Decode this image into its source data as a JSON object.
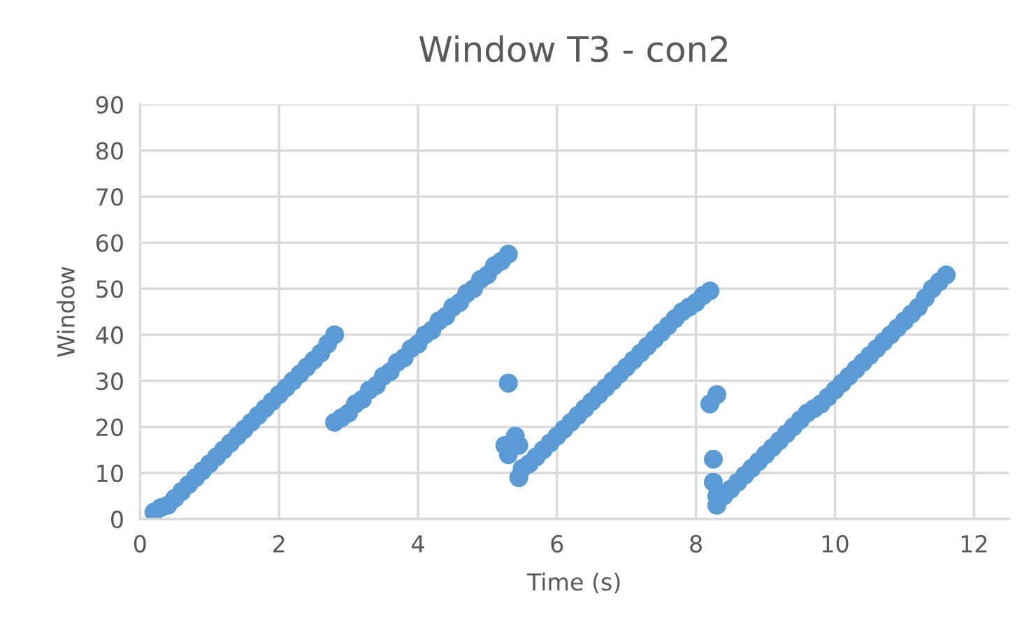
{
  "chart_data": {
    "type": "scatter",
    "title": "Window T3 - con2",
    "xlabel": "Time (s)",
    "ylabel": "Window",
    "series": [
      {
        "color": "#5b9bd5",
        "x": [
          0.2,
          0.3,
          0.4,
          0.5,
          0.6,
          0.7,
          0.8,
          0.9,
          1.0,
          1.1,
          1.2,
          1.3,
          1.4,
          1.5,
          1.6,
          1.7,
          1.8,
          1.9,
          2.0,
          2.1,
          2.2,
          2.3,
          2.4,
          2.5,
          2.6,
          2.7,
          2.8,
          2.8,
          2.9,
          3.0,
          3.1,
          3.2,
          3.3,
          3.4,
          3.5,
          3.6,
          3.7,
          3.8,
          3.9,
          4.0,
          4.1,
          4.2,
          4.3,
          4.4,
          4.5,
          4.6,
          4.7,
          4.8,
          4.9,
          5.0,
          5.1,
          5.2,
          5.3,
          5.3,
          5.25,
          5.3,
          5.4,
          5.45,
          5.45,
          5.5,
          5.6,
          5.7,
          5.8,
          5.9,
          6.0,
          6.1,
          6.2,
          6.3,
          6.4,
          6.5,
          6.6,
          6.7,
          6.8,
          6.9,
          7.0,
          7.1,
          7.2,
          7.3,
          7.4,
          7.5,
          7.6,
          7.7,
          7.8,
          7.9,
          8.0,
          8.1,
          8.2,
          8.2,
          8.3,
          8.25,
          8.25,
          8.3,
          8.3,
          8.4,
          8.5,
          8.6,
          8.7,
          8.8,
          8.9,
          9.0,
          9.1,
          9.2,
          9.3,
          9.4,
          9.5,
          9.6,
          9.7,
          9.8,
          9.9,
          10.0,
          10.1,
          10.2,
          10.3,
          10.4,
          10.5,
          10.6,
          10.7,
          10.8,
          10.9,
          11.0,
          11.1,
          11.2,
          11.3,
          11.4,
          11.5,
          11.6
        ],
        "values": [
          1.5,
          2.5,
          3,
          4.5,
          6,
          7.5,
          9,
          10.5,
          12,
          13.5,
          15,
          16.5,
          18,
          19.5,
          21,
          22.5,
          24,
          25.5,
          27,
          28.5,
          30,
          31.5,
          33,
          34.5,
          36,
          38,
          40,
          21,
          22,
          23,
          25,
          26,
          28,
          29,
          31,
          32,
          34,
          35,
          37,
          38,
          40,
          41,
          43,
          44,
          46,
          47,
          49,
          50,
          52,
          53,
          55,
          56,
          57.5,
          29.5,
          16,
          14,
          18,
          16,
          9,
          11,
          12,
          13.5,
          15,
          16.5,
          18,
          19.5,
          21,
          22.5,
          24,
          25.5,
          27,
          28.5,
          30,
          31.5,
          33,
          34.5,
          36,
          37.5,
          39,
          40.5,
          42,
          43.5,
          45,
          46,
          47,
          48.5,
          49.5,
          25,
          27,
          13,
          8,
          5,
          3,
          5,
          6.5,
          8,
          9.5,
          11,
          12.5,
          14,
          15.5,
          17,
          18.5,
          20,
          21.5,
          23,
          24,
          25,
          26.5,
          28,
          29.5,
          31,
          32.5,
          34,
          35.5,
          37,
          38.5,
          40,
          41.5,
          43,
          44.5,
          46,
          48,
          50,
          51.5,
          53
        ]
      }
    ],
    "xlim": [
      0,
      12.5
    ],
    "xticks": [
      0,
      2,
      4,
      6,
      8,
      10,
      12
    ],
    "ylim": [
      0,
      90
    ],
    "yticks": [
      0,
      10,
      20,
      30,
      40,
      50,
      60,
      70,
      80,
      90
    ],
    "grid": true,
    "marker": "circle"
  }
}
